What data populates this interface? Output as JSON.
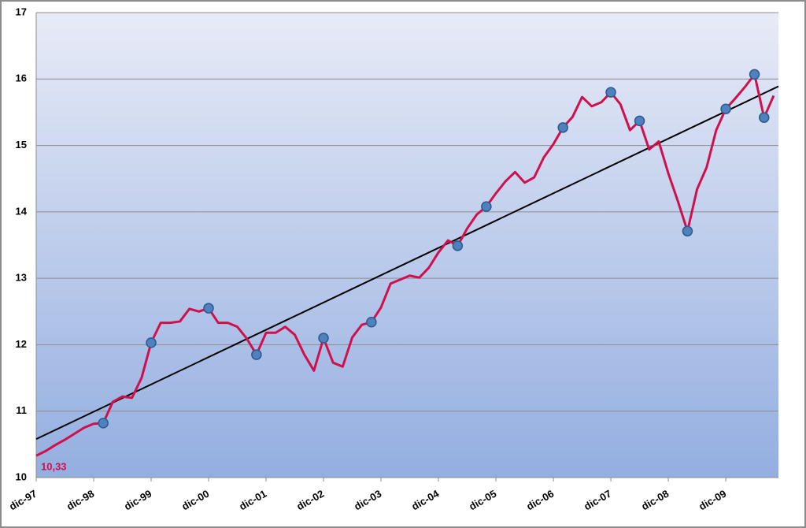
{
  "chart_data": {
    "type": "line",
    "categories": [
      "dic-97",
      null,
      null,
      null,
      null,
      null,
      "dic-98",
      null,
      null,
      null,
      null,
      null,
      "dic-99",
      null,
      null,
      null,
      null,
      null,
      "dic-00",
      null,
      null,
      null,
      null,
      null,
      "dic-01",
      null,
      null,
      null,
      null,
      null,
      "dic-02",
      null,
      null,
      null,
      null,
      null,
      "dic-03",
      null,
      null,
      null,
      null,
      null,
      "dic-04",
      null,
      null,
      null,
      null,
      null,
      "dic-05",
      null,
      null,
      null,
      null,
      null,
      "dic-06",
      null,
      null,
      null,
      null,
      null,
      "dic-07",
      null,
      null,
      null,
      null,
      null,
      "dic-08",
      null,
      null,
      null,
      null,
      null,
      "dic-09",
      null,
      null,
      null,
      null,
      null
    ],
    "series": [
      {
        "color": "#d0104c",
        "values": [
          10.33,
          10.4,
          10.49,
          10.57,
          10.66,
          10.75,
          10.81,
          10.82,
          11.14,
          11.22,
          11.2,
          11.5,
          12.03,
          12.33,
          12.33,
          12.35,
          12.54,
          12.5,
          12.55,
          12.33,
          12.33,
          12.27,
          12.09,
          11.85,
          12.18,
          12.18,
          12.27,
          12.15,
          11.85,
          11.61,
          12.1,
          11.73,
          11.67,
          12.11,
          12.3,
          12.34,
          12.56,
          12.92,
          12.98,
          13.04,
          13.01,
          13.16,
          13.39,
          13.57,
          13.49,
          13.75,
          13.96,
          14.08,
          14.28,
          14.46,
          14.6,
          14.44,
          14.52,
          14.82,
          15.02,
          15.27,
          15.43,
          15.73,
          15.59,
          15.65,
          15.8,
          15.62,
          15.23,
          15.37,
          14.94,
          15.06,
          14.58,
          14.16,
          13.71,
          14.34,
          14.67,
          15.23,
          15.55,
          15.71,
          15.88,
          16.07,
          15.42,
          15.75
        ]
      },
      {
        "color": "#4f81bd",
        "markers_only": true,
        "values": [
          null,
          null,
          null,
          null,
          null,
          null,
          null,
          10.82,
          null,
          null,
          null,
          null,
          12.03,
          null,
          null,
          null,
          null,
          null,
          12.55,
          null,
          null,
          null,
          null,
          11.85,
          null,
          null,
          null,
          null,
          null,
          null,
          12.1,
          null,
          null,
          null,
          null,
          12.34,
          null,
          null,
          null,
          null,
          null,
          null,
          null,
          null,
          13.49,
          null,
          null,
          14.08,
          null,
          null,
          null,
          null,
          null,
          null,
          null,
          15.27,
          null,
          null,
          null,
          null,
          15.8,
          null,
          null,
          15.37,
          null,
          null,
          null,
          null,
          13.71,
          null,
          null,
          null,
          15.55,
          null,
          null,
          16.07,
          15.42,
          null
        ]
      }
    ],
    "trendline": {
      "color": "#000000",
      "values": [
        10.58,
        15.89
      ]
    },
    "annotation": "10,33",
    "ylim": [
      10,
      17
    ],
    "yticks": [
      10,
      11,
      12,
      13,
      14,
      15,
      16,
      17
    ],
    "grid": true
  }
}
